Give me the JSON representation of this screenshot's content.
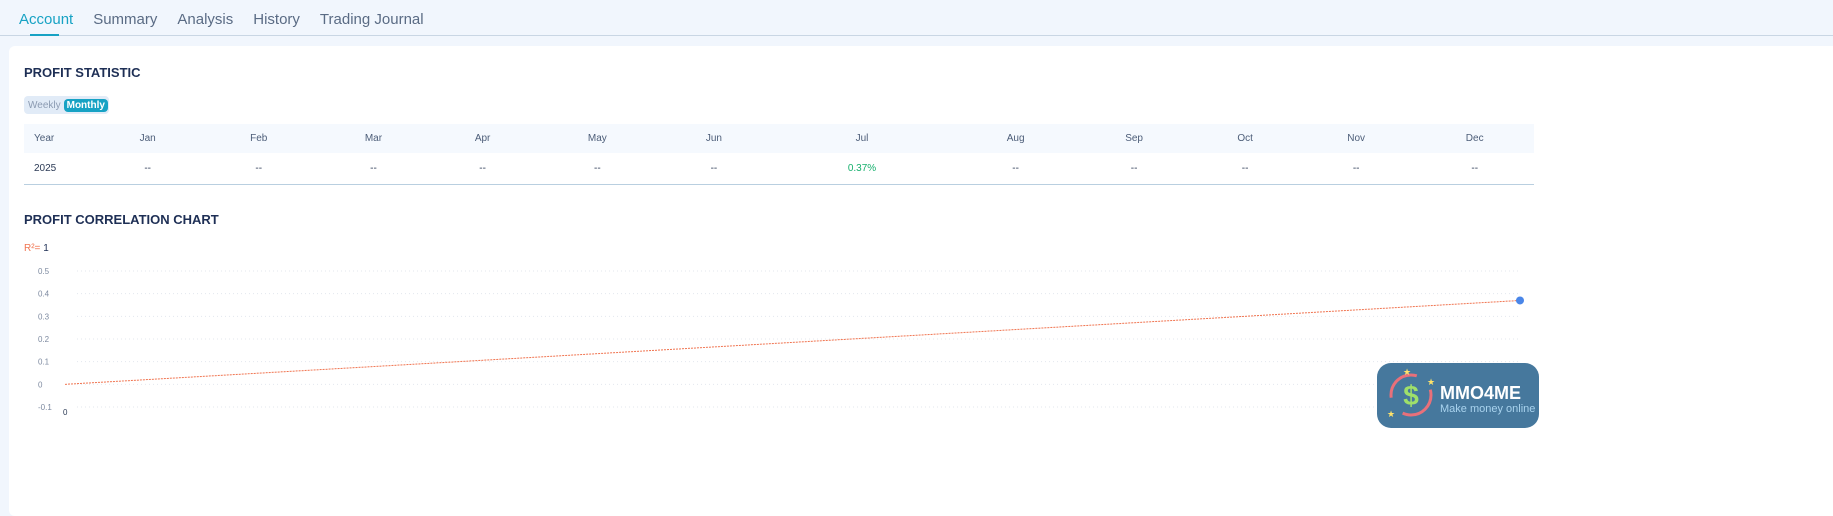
{
  "tabs": [
    {
      "label": "Account",
      "active": true
    },
    {
      "label": "Summary"
    },
    {
      "label": "Analysis"
    },
    {
      "label": "History"
    },
    {
      "label": "Trading Journal"
    }
  ],
  "profit_statistic": {
    "title": "PROFIT STATISTIC",
    "toggle": {
      "options": [
        "Weekly",
        "Monthly"
      ],
      "selected": "Monthly"
    },
    "columns": [
      "Year",
      "Jan",
      "Feb",
      "Mar",
      "Apr",
      "May",
      "Jun",
      "Jul",
      "Aug",
      "Sep",
      "Oct",
      "Nov",
      "Dec"
    ],
    "rows": [
      [
        "2025",
        "--",
        "--",
        "--",
        "--",
        "--",
        "--",
        "0.37%",
        "--",
        "--",
        "--",
        "--",
        "--"
      ]
    ]
  },
  "correlation": {
    "title": "PROFIT CORRELATION CHART",
    "r2_label": "R²=",
    "r2_value": "1"
  },
  "chart_data": {
    "type": "scatter",
    "yticks": [
      "0.5",
      "0.4",
      "0.3",
      "0.2",
      "0.1",
      "0",
      "-0.1"
    ],
    "xticks": [
      "0"
    ],
    "ylim": [
      -0.1,
      0.5
    ],
    "points": [
      {
        "y": 0.37
      }
    ],
    "trendline": {
      "from": 0,
      "to": 0.37,
      "color": "#f07450"
    },
    "point_color": "#4a86e8",
    "grid": true
  },
  "watermark": {
    "brand": "MMO4ME",
    "tagline": "Make money online"
  }
}
